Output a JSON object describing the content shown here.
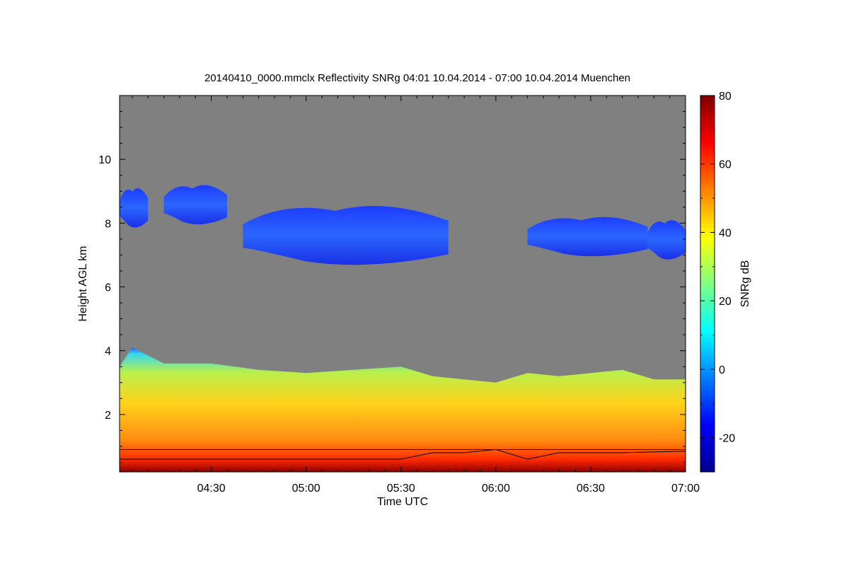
{
  "chart_data": {
    "type": "heatmap",
    "title": "20140410_0000.mmclx Reflectivity SNRg   04:01 10.04.2014 - 07:00 10.04.2014 Muenchen",
    "xlabel": "Time UTC",
    "ylabel": "Height AGL km",
    "x_range": [
      "04:01",
      "07:00"
    ],
    "y_range_km": [
      0.2,
      12.0
    ],
    "x_ticks": [
      "04:30",
      "05:00",
      "05:30",
      "06:00",
      "06:30",
      "07:00"
    ],
    "y_ticks": [
      2,
      4,
      6,
      8,
      10
    ],
    "colorbar": {
      "label": "SNRg dB",
      "range": [
        -30,
        80
      ],
      "ticks": [
        -20,
        0,
        20,
        40,
        60,
        80
      ]
    },
    "background_color": "#808080",
    "features": {
      "boundary_layer_top_km": [
        [
          "04:01",
          3.5
        ],
        [
          "04:05",
          4.1
        ],
        [
          "04:15",
          3.6
        ],
        [
          "04:30",
          3.6
        ],
        [
          "04:45",
          3.4
        ],
        [
          "05:00",
          3.3
        ],
        [
          "05:15",
          3.4
        ],
        [
          "05:30",
          3.5
        ],
        [
          "05:40",
          3.2
        ],
        [
          "05:50",
          3.1
        ],
        [
          "06:00",
          3.0
        ],
        [
          "06:10",
          3.3
        ],
        [
          "06:20",
          3.2
        ],
        [
          "06:30",
          3.3
        ],
        [
          "06:40",
          3.4
        ],
        [
          "06:50",
          3.1
        ],
        [
          "07:00",
          3.1
        ]
      ],
      "upper_cloud_layers": [
        {
          "start": "04:01",
          "end": "04:10",
          "bottom_km": 7.8,
          "top_km": 9.2
        },
        {
          "start": "04:15",
          "end": "04:35",
          "bottom_km": 7.9,
          "top_km": 9.3
        },
        {
          "start": "04:40",
          "end": "05:45",
          "bottom_km": 6.6,
          "top_km": 8.7
        },
        {
          "start": "06:10",
          "end": "06:48",
          "bottom_km": 6.9,
          "top_km": 8.3
        },
        {
          "start": "06:48",
          "end": "07:00",
          "bottom_km": 6.8,
          "top_km": 8.2
        }
      ],
      "black_reference_line_km": 0.9,
      "black_trace_km": [
        [
          "04:01",
          0.6
        ],
        [
          "05:30",
          0.6
        ],
        [
          "05:40",
          0.8
        ],
        [
          "05:50",
          0.8
        ],
        [
          "06:00",
          0.9
        ],
        [
          "06:10",
          0.6
        ],
        [
          "06:20",
          0.8
        ],
        [
          "06:40",
          0.8
        ],
        [
          "07:00",
          0.85
        ]
      ]
    }
  }
}
